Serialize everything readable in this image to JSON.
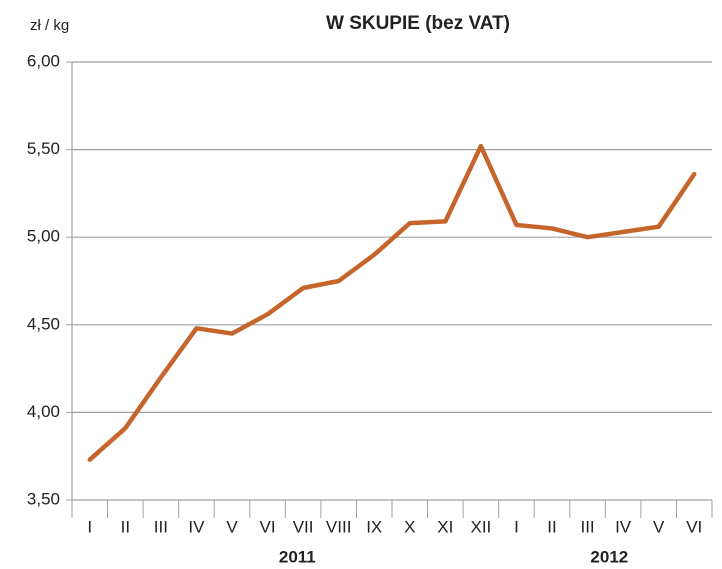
{
  "chart_data": {
    "type": "line",
    "title": "W  SKUPIE  (bez VAT)",
    "y_label": "zł / kg",
    "categories": [
      "I",
      "II",
      "III",
      "IV",
      "V",
      "VI",
      "VII",
      "VIII",
      "IX",
      "X",
      "XI",
      "XII",
      "I",
      "II",
      "III",
      "IV",
      "V",
      "VI"
    ],
    "year_labels": [
      "2011",
      "2012"
    ],
    "series": [
      {
        "name": "W skupie",
        "color": "#c5652b",
        "values": [
          3.73,
          3.91,
          4.2,
          4.48,
          4.45,
          4.56,
          4.71,
          4.75,
          4.9,
          5.08,
          5.09,
          5.52,
          5.07,
          5.05,
          5.0,
          5.03,
          5.06,
          5.36
        ]
      }
    ],
    "ylim": [
      3.5,
      6.0
    ],
    "yticks": [
      {
        "value": 3.5,
        "label": "3,50"
      },
      {
        "value": 4.0,
        "label": "4,00"
      },
      {
        "value": 4.5,
        "label": "4,50"
      },
      {
        "value": 5.0,
        "label": "5,00"
      },
      {
        "value": 5.5,
        "label": "5,50"
      },
      {
        "value": 6.0,
        "label": "6,00"
      }
    ],
    "grid": true
  }
}
